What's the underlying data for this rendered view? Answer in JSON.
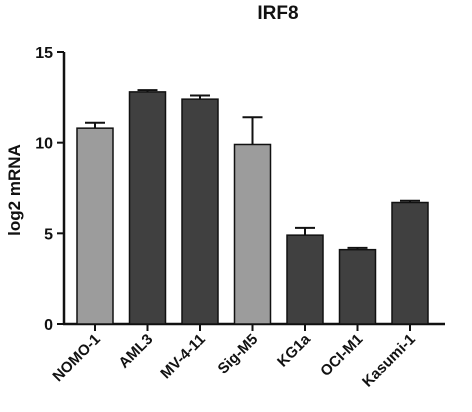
{
  "chart_data": {
    "type": "bar",
    "title": "IRF8",
    "xlabel": "",
    "ylabel": "log2 mRNA",
    "ylim": [
      0,
      15
    ],
    "yticks": [
      0,
      5,
      10,
      15
    ],
    "categories": [
      "NOMO-1",
      "AML3",
      "MV-4-11",
      "Sig-M5",
      "KG1a",
      "OCI-M1",
      "Kasumi-1"
    ],
    "values": [
      10.8,
      12.8,
      12.4,
      9.9,
      4.9,
      4.1,
      6.7
    ],
    "errors": [
      0.3,
      0.1,
      0.2,
      1.5,
      0.4,
      0.1,
      0.1
    ],
    "bar_colors": [
      "#9c9c9c",
      "#404040",
      "#404040",
      "#9c9c9c",
      "#404040",
      "#404040",
      "#404040"
    ],
    "grid": false,
    "legend": "none"
  }
}
